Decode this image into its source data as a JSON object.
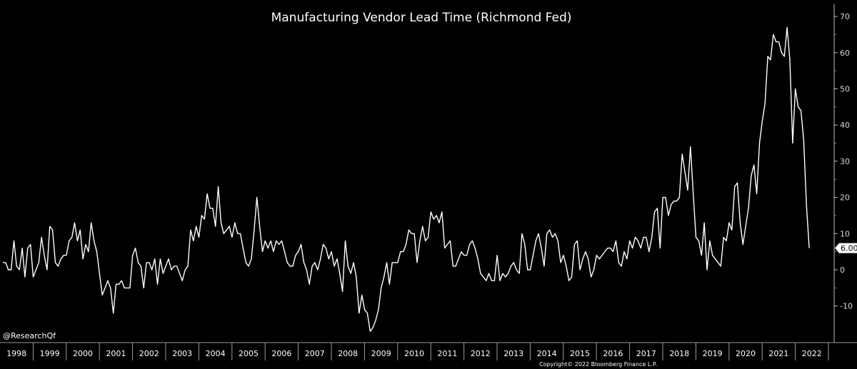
{
  "chart_data": {
    "type": "line",
    "title": "Manufacturing Vendor Lead Time (Richmond Fed)",
    "xlabel": "",
    "ylabel": "",
    "ylim": [
      -20,
      72
    ],
    "y_ticks": [
      "-10",
      "0",
      "10",
      "20",
      "30",
      "40",
      "50",
      "60",
      "70"
    ],
    "year_labels": [
      "1998",
      "1999",
      "2000",
      "2001",
      "2002",
      "2003",
      "2004",
      "2005",
      "2006",
      "2007",
      "2008",
      "2009",
      "2010",
      "2011",
      "2012",
      "2013",
      "2014",
      "2015",
      "2016",
      "2017",
      "2018",
      "2019",
      "2020",
      "2021",
      "2022"
    ],
    "start_year": 1998,
    "last_value_label": "6.00",
    "series": [
      {
        "name": "Manufacturing Vendor Lead Time",
        "color": "#ffffff",
        "values": [
          2,
          2,
          0,
          0,
          8,
          1,
          0,
          6,
          -2,
          6,
          7,
          -2,
          0,
          2,
          9,
          4,
          0,
          12,
          11,
          2,
          1,
          3,
          4,
          4,
          8,
          9,
          13,
          8,
          11,
          3,
          7,
          5,
          13,
          8,
          5,
          -1,
          -7,
          -5,
          -3,
          -5,
          -12,
          -4,
          -4,
          -3,
          -5,
          -5,
          -5,
          4,
          6,
          2,
          1,
          -5,
          2,
          2,
          0,
          3,
          -4,
          3,
          -1,
          1,
          3,
          0,
          1,
          1,
          -1,
          -3,
          0,
          1,
          11,
          8,
          12,
          9,
          15,
          14,
          21,
          17,
          17,
          12,
          23,
          13,
          10,
          11,
          12,
          9,
          13,
          10,
          10,
          6,
          2,
          1,
          3,
          11,
          20,
          12,
          5,
          8,
          6,
          8,
          5,
          8,
          7,
          8,
          5,
          2,
          1,
          1,
          4,
          5,
          7,
          2,
          0,
          -4,
          1,
          2,
          0,
          3,
          7,
          6,
          3,
          5,
          1,
          3,
          -1,
          -6,
          8,
          1,
          -1,
          2,
          -2,
          -12,
          -7,
          -11,
          -12,
          -17,
          -16,
          -14,
          -11,
          -5,
          -2,
          2,
          -4,
          2,
          2,
          2,
          5,
          5,
          7,
          11,
          10,
          10,
          2,
          8,
          12,
          8,
          9,
          16,
          14,
          15,
          13,
          16,
          6,
          7,
          8,
          1,
          1,
          3,
          5,
          4,
          4,
          7,
          8,
          6,
          3,
          -1,
          -2,
          -3,
          -1,
          -3,
          -3,
          4,
          -3,
          -1,
          -2,
          -1,
          1,
          2,
          0,
          -1,
          10,
          7,
          0,
          0,
          4,
          8,
          10,
          6,
          1,
          10,
          11,
          9,
          10,
          8,
          2,
          4,
          1,
          -3,
          -2,
          7,
          8,
          0,
          3,
          5,
          3,
          -2,
          0,
          4,
          3,
          4,
          5,
          6,
          6,
          5,
          8,
          2,
          1,
          5,
          3,
          8,
          6,
          9,
          8,
          6,
          9,
          9,
          5,
          9,
          16,
          17,
          6,
          20,
          20,
          15,
          18,
          19,
          19,
          20,
          32,
          27,
          22,
          34,
          21,
          9,
          8,
          4,
          13,
          0,
          8,
          4,
          3,
          2,
          1,
          9,
          8,
          13,
          11,
          23,
          24,
          13,
          7,
          12,
          17,
          26,
          29,
          21,
          35,
          41,
          46,
          59,
          58,
          65,
          63,
          63,
          60,
          59,
          67,
          58,
          35,
          50,
          45,
          44,
          36,
          18,
          6
        ]
      }
    ]
  },
  "footer": {
    "watermark": "@ResearchQf",
    "copyright": "Copyright© 2022 Bloomberg Finance L.P."
  }
}
